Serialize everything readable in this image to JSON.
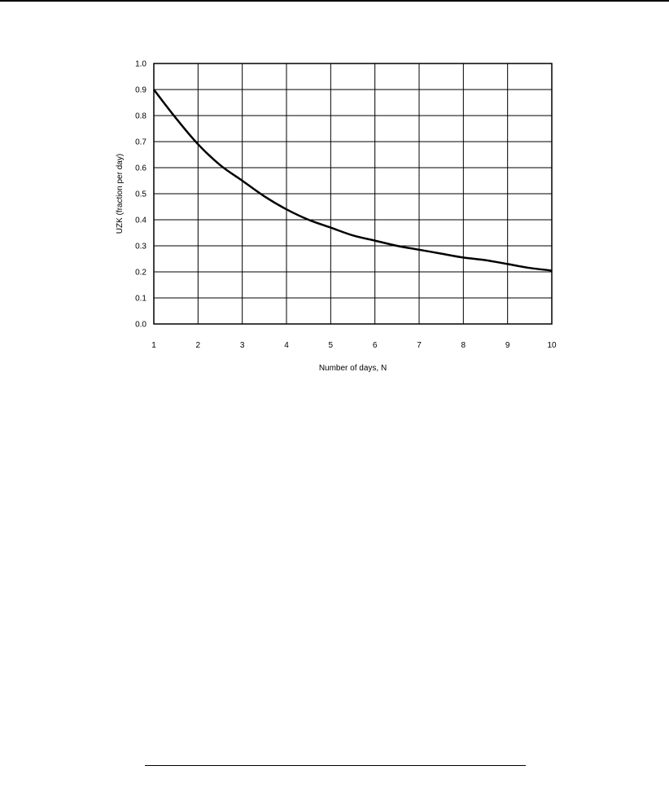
{
  "chart_data": {
    "type": "line",
    "title": "",
    "xlabel": "Number of days, N",
    "ylabel": "UZK (fraction per day)",
    "xlim": [
      1,
      10
    ],
    "ylim": [
      0.0,
      1.0
    ],
    "x_ticks": [
      "1",
      "2",
      "3",
      "4",
      "5",
      "6",
      "7",
      "8",
      "9",
      "10"
    ],
    "y_ticks": [
      "0.0",
      "0.1",
      "0.2",
      "0.3",
      "0.4",
      "0.5",
      "0.6",
      "0.7",
      "0.8",
      "0.9",
      "1.0"
    ],
    "grid": true,
    "legend": "none",
    "series": [
      {
        "x": [
          1,
          1.5,
          2,
          2.5,
          3,
          3.5,
          4,
          4.5,
          5,
          5.5,
          6,
          6.5,
          7,
          7.5,
          8,
          8.5,
          9,
          9.5,
          10
        ],
        "y": [
          0.9,
          0.79,
          0.69,
          0.61,
          0.55,
          0.49,
          0.44,
          0.4,
          0.37,
          0.34,
          0.32,
          0.3,
          0.285,
          0.27,
          0.255,
          0.245,
          0.23,
          0.215,
          0.205
        ]
      }
    ],
    "line_color": "#000000"
  }
}
